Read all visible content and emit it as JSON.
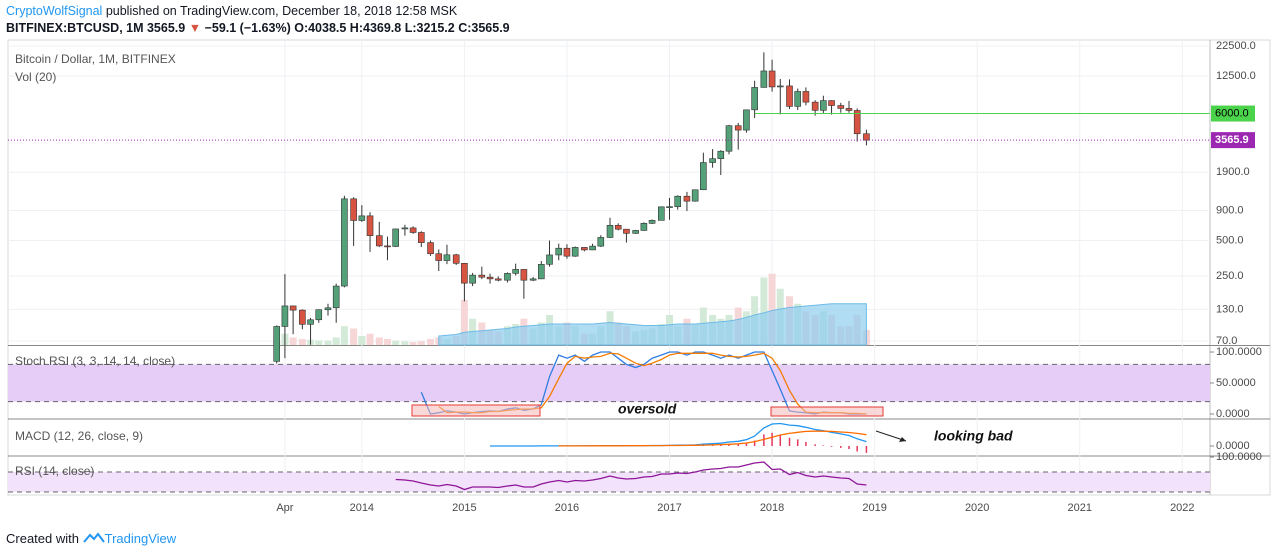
{
  "header": {
    "author": "CryptoWolfSignal",
    "published": "published on TradingView.com, December 18, 2018 12:58 MSK",
    "symbol": "BITFINEX:BTCUSD, 1M",
    "last": "3565.9",
    "change": "−59.1 (−1.63%)",
    "ohlc": "O:4038.5 H:4369.8 L:3215.2 C:3565.9"
  },
  "footer": {
    "text": "Created with",
    "brand": "TradingView"
  },
  "chart_data": [
    {
      "type": "candlestick",
      "title": "Bitcoin / Dollar, 1M, BITFINEX",
      "volume_title": "Vol (20)",
      "x": [
        2013.17,
        2013.25,
        2013.33,
        2013.42,
        2013.5,
        2013.58,
        2013.67,
        2013.75,
        2013.83,
        2013.92,
        2014.0,
        2014.08,
        2014.17,
        2014.25,
        2014.33,
        2014.42,
        2014.5,
        2014.58,
        2014.67,
        2014.75,
        2014.83,
        2014.92,
        2015.0,
        2015.08,
        2015.17,
        2015.25,
        2015.33,
        2015.42,
        2015.5,
        2015.58,
        2015.67,
        2015.75,
        2015.83,
        2015.92,
        2016.0,
        2016.08,
        2016.17,
        2016.25,
        2016.33,
        2016.42,
        2016.5,
        2016.58,
        2016.67,
        2016.75,
        2016.83,
        2016.92,
        2017.0,
        2017.08,
        2017.17,
        2017.25,
        2017.33,
        2017.42,
        2017.5,
        2017.58,
        2017.67,
        2017.75,
        2017.83,
        2017.92,
        2018.0,
        2018.08,
        2018.17,
        2018.25,
        2018.33,
        2018.42,
        2018.5,
        2018.58,
        2018.67,
        2018.75,
        2018.83,
        2018.92
      ],
      "open": [
        47,
        93,
        139,
        128,
        97,
        106,
        129,
        134,
        205,
        1130,
        740,
        810,
        550,
        450,
        445,
        627,
        640,
        585,
        480,
        386,
        338,
        378,
        320,
        217,
        254,
        244,
        236,
        230,
        263,
        284,
        230,
        236,
        314,
        377,
        430,
        368,
        437,
        416,
        448,
        531,
        673,
        624,
        575,
        609,
        700,
        742,
        966,
        970,
        1190,
        1080,
        1350,
        2300,
        2480,
        2870,
        4730,
        4340,
        6450,
        10000,
        13800,
        10100,
        10300,
        6900,
        9240,
        7500,
        6390,
        7730,
        7020,
        6630,
        6370,
        4038.5
      ],
      "high": [
        95,
        259,
        140,
        130,
        110,
        130,
        145,
        215,
        1200,
        1165,
        1000,
        870,
        720,
        540,
        630,
        680,
        660,
        600,
        500,
        420,
        460,
        385,
        320,
        265,
        300,
        261,
        248,
        268,
        318,
        285,
        245,
        335,
        500,
        470,
        465,
        445,
        440,
        470,
        555,
        780,
        700,
        625,
        615,
        715,
        755,
        975,
        1150,
        1210,
        1295,
        1350,
        2790,
        2990,
        2930,
        4800,
        4990,
        6470,
        11400,
        19890,
        17200,
        11790,
        11700,
        9780,
        10000,
        7790,
        8500,
        7770,
        7400,
        7680,
        6630,
        4369.8
      ],
      "low": [
        45,
        50,
        80,
        88,
        65,
        100,
        115,
        100,
        200,
        450,
        720,
        400,
        440,
        340,
        440,
        550,
        570,
        440,
        370,
        275,
        315,
        310,
        152,
        205,
        235,
        215,
        225,
        220,
        252,
        160,
        226,
        236,
        300,
        340,
        350,
        363,
        405,
        415,
        440,
        525,
        610,
        480,
        570,
        606,
        690,
        742,
        750,
        915,
        890,
        1070,
        1350,
        2080,
        1800,
        2700,
        2960,
        4120,
        5500,
        10000,
        9200,
        5900,
        6550,
        6430,
        7040,
        5760,
        6070,
        5880,
        6100,
        6100,
        3470,
        3215.2
      ],
      "close": [
        93,
        139,
        128,
        97,
        106,
        129,
        134,
        205,
        1130,
        740,
        810,
        550,
        450,
        445,
        627,
        640,
        585,
        480,
        386,
        338,
        378,
        320,
        217,
        254,
        244,
        236,
        230,
        263,
        284,
        230,
        236,
        314,
        377,
        430,
        368,
        437,
        416,
        448,
        531,
        673,
        624,
        575,
        609,
        700,
        742,
        966,
        970,
        1190,
        1080,
        1350,
        2300,
        2480,
        2870,
        4730,
        4340,
        6450,
        10000,
        13800,
        10100,
        10300,
        6900,
        9240,
        7500,
        6390,
        7730,
        7020,
        6630,
        6370,
        4040,
        3565.9
      ],
      "up_color": "#53a079",
      "down_color": "#d75442",
      "volume": [
        5,
        15,
        10,
        8,
        7,
        6,
        6,
        10,
        25,
        22,
        12,
        15,
        10,
        8,
        6,
        5,
        4,
        5,
        8,
        10,
        8,
        12,
        60,
        35,
        30,
        20,
        18,
        25,
        28,
        35,
        22,
        30,
        40,
        25,
        30,
        25,
        15,
        15,
        25,
        45,
        30,
        25,
        18,
        20,
        22,
        28,
        40,
        25,
        35,
        28,
        50,
        40,
        35,
        40,
        50,
        45,
        65,
        90,
        95,
        75,
        65,
        55,
        45,
        40,
        45,
        40,
        25,
        25,
        40,
        20
      ],
      "volume_up_color": "#d3ead9",
      "volume_down_color": "#f6d6d6",
      "volume_ma": [
        null,
        null,
        null,
        null,
        null,
        null,
        null,
        null,
        null,
        null,
        null,
        null,
        null,
        null,
        null,
        null,
        null,
        null,
        null,
        12,
        13,
        14,
        17,
        18,
        19,
        20,
        21,
        22,
        24,
        25,
        26,
        27,
        28,
        28,
        28,
        28,
        28,
        28,
        29,
        30,
        29,
        28,
        27,
        26,
        26,
        26,
        27,
        28,
        28,
        28,
        29,
        30,
        31,
        32,
        34,
        37,
        40,
        43,
        46,
        48,
        50,
        51,
        52,
        53,
        54,
        55,
        55,
        55,
        55,
        55
      ],
      "volume_ma_color": "#8fcdf0",
      "log_scale": true,
      "grid": true,
      "xlim": [
        2010.55,
        2022.27
      ],
      "xticks": [
        {
          "value": 2013.25,
          "label": "Apr"
        },
        2014,
        2015,
        2016,
        2017,
        2018,
        2019,
        2020,
        2021,
        2022
      ],
      "ylim": [
        64.7,
        25300
      ],
      "yticks": [
        {
          "value": 22500,
          "label": "22500.0"
        },
        {
          "value": 12500,
          "label": "12500.0"
        },
        {
          "value": 1900,
          "label": "1900.0"
        },
        {
          "value": 900,
          "label": "900.0"
        },
        {
          "value": 500,
          "label": "500.0"
        },
        {
          "value": 250,
          "label": "250.0"
        },
        {
          "value": 130,
          "label": "130.0"
        },
        {
          "value": 70,
          "label": "70.0"
        }
      ],
      "price_line": {
        "value": 6000,
        "label": "6000.0",
        "color": "#4cd34c"
      },
      "last_price": {
        "value": 3565.9,
        "label": "3565.9",
        "color": "#9c27b0"
      }
    },
    {
      "type": "line",
      "title": "Stoch RSI (3, 3, 14, 14, close)",
      "annotation": "oversold",
      "ylim": [
        -6.5,
        108.1
      ],
      "yticks": [
        {
          "value": 100,
          "label": "100.0000"
        },
        {
          "value": 50,
          "label": "50.0000"
        },
        {
          "value": 0,
          "label": "0.0000"
        }
      ],
      "bands": [
        20,
        80
      ],
      "band_fill": "#e6cdf7",
      "series": [
        {
          "color": "#2f7de1",
          "values": [
            null,
            null,
            null,
            null,
            null,
            null,
            null,
            null,
            null,
            null,
            null,
            null,
            null,
            null,
            null,
            null,
            null,
            35,
            0,
            2,
            5,
            3,
            0,
            2,
            4,
            5,
            4,
            8,
            10,
            6,
            8,
            15,
            60,
            95,
            90,
            95,
            85,
            95,
            100,
            100,
            90,
            80,
            75,
            80,
            90,
            95,
            100,
            100,
            95,
            100,
            100,
            95,
            90,
            95,
            90,
            95,
            100,
            100,
            70,
            40,
            5,
            3,
            2,
            0,
            3,
            2,
            2,
            0,
            0,
            0
          ]
        },
        {
          "color": "#f57c00",
          "values": [
            null,
            null,
            null,
            null,
            null,
            null,
            null,
            null,
            null,
            null,
            null,
            null,
            null,
            null,
            null,
            null,
            null,
            null,
            null,
            12,
            2,
            3,
            3,
            2,
            2,
            4,
            4,
            6,
            7,
            8,
            8,
            10,
            28,
            57,
            82,
            93,
            90,
            92,
            93,
            98,
            97,
            90,
            82,
            78,
            82,
            88,
            95,
            98,
            98,
            98,
            98,
            98,
            95,
            93,
            92,
            93,
            95,
            98,
            90,
            70,
            38,
            16,
            3,
            2,
            2,
            2,
            2,
            1,
            1,
            0
          ]
        }
      ]
    },
    {
      "type": "line",
      "title": "MACD (12, 26, close, 9)",
      "annotation": "looking bad",
      "ylim": [
        -1640,
        4730
      ],
      "yticks": [
        {
          "value": 0,
          "label": "0.0000"
        }
      ],
      "series": [
        {
          "color": "#2196f3",
          "values": [
            null,
            null,
            null,
            null,
            null,
            null,
            null,
            null,
            null,
            null,
            null,
            null,
            null,
            null,
            null,
            null,
            null,
            null,
            null,
            null,
            null,
            null,
            null,
            null,
            null,
            0,
            0,
            2,
            4,
            3,
            5,
            10,
            15,
            20,
            22,
            25,
            30,
            35,
            45,
            55,
            60,
            60,
            62,
            70,
            80,
            95,
            115,
            150,
            165,
            200,
            330,
            420,
            500,
            720,
            850,
            1150,
            1800,
            3300,
            4000,
            4100,
            3800,
            3700,
            3400,
            3000,
            2800,
            2500,
            2200,
            1900,
            1300,
            800
          ]
        },
        {
          "color": "#ff6d00",
          "values": [
            null,
            null,
            null,
            null,
            null,
            null,
            null,
            null,
            null,
            null,
            null,
            null,
            null,
            null,
            null,
            null,
            null,
            null,
            null,
            null,
            null,
            null,
            null,
            null,
            null,
            null,
            null,
            null,
            null,
            null,
            null,
            null,
            null,
            15,
            18,
            20,
            23,
            26,
            30,
            35,
            40,
            45,
            50,
            56,
            63,
            70,
            80,
            95,
            110,
            130,
            160,
            200,
            250,
            310,
            400,
            540,
            800,
            1200,
            1600,
            2000,
            2300,
            2500,
            2650,
            2700,
            2700,
            2650,
            2550,
            2450,
            2300,
            2050
          ]
        }
      ],
      "histogram": {
        "color": "#e5375b",
        "values": [
          null,
          null,
          null,
          null,
          null,
          null,
          null,
          null,
          null,
          null,
          null,
          null,
          null,
          null,
          null,
          null,
          null,
          null,
          null,
          null,
          null,
          null,
          null,
          null,
          null,
          null,
          null,
          null,
          null,
          null,
          null,
          null,
          null,
          5,
          4,
          5,
          7,
          9,
          15,
          20,
          20,
          15,
          12,
          14,
          17,
          25,
          35,
          55,
          55,
          70,
          170,
          220,
          250,
          410,
          450,
          610,
          1000,
          2100,
          2400,
          2100,
          1500,
          1200,
          750,
          300,
          100,
          -150,
          -350,
          -550,
          -1000,
          -1250
        ]
      }
    },
    {
      "type": "line",
      "title": "RSI (14, close)",
      "ylim": [
        28,
        100
      ],
      "yticks": [
        {
          "value": 100,
          "label": "100.0000"
        }
      ],
      "bands": [
        30,
        70
      ],
      "band_fill": "#f3e2fb",
      "series": [
        {
          "color": "#8e1599",
          "values": [
            null,
            null,
            null,
            null,
            null,
            null,
            null,
            null,
            null,
            null,
            null,
            null,
            null,
            null,
            55,
            54,
            52,
            48,
            44,
            42,
            45,
            42,
            35,
            40,
            40,
            40,
            39,
            42,
            44,
            40,
            40,
            46,
            50,
            53,
            50,
            53,
            52,
            54,
            57,
            62,
            58,
            56,
            57,
            60,
            61,
            66,
            66,
            68,
            67,
            70,
            74,
            76,
            77,
            80,
            80,
            84,
            88,
            90,
            75,
            76,
            65,
            69,
            63,
            60,
            62,
            60,
            58,
            57,
            46,
            44
          ]
        }
      ]
    }
  ]
}
